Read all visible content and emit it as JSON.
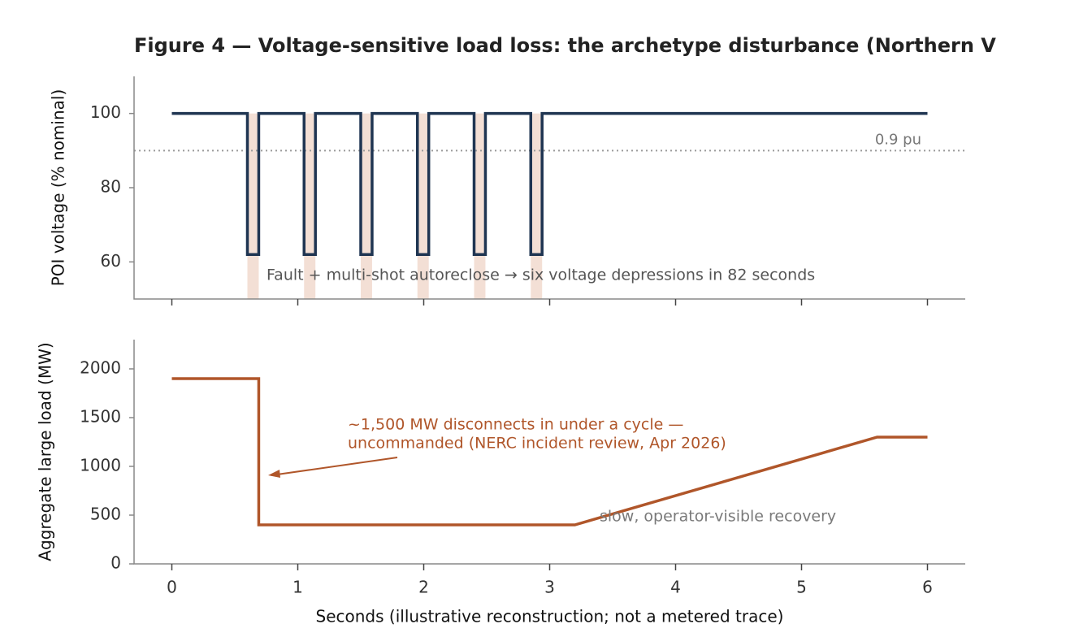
{
  "chart_data": [
    {
      "type": "line",
      "title": "Figure 4 — Voltage-sensitive load loss: the archetype disturbance (Northern V",
      "y_label": "POI voltage (% nominal)",
      "x": [
        0,
        0.6,
        0.6,
        0.69,
        0.69,
        1.05,
        1.05,
        1.14,
        1.14,
        1.5,
        1.5,
        1.59,
        1.59,
        1.95,
        1.95,
        2.04,
        2.04,
        2.4,
        2.4,
        2.49,
        2.49,
        2.85,
        2.85,
        2.94,
        2.94,
        6
      ],
      "series": [
        {
          "name": "POI voltage",
          "color": "#1f3552",
          "values": [
            100,
            100,
            62,
            62,
            100,
            100,
            62,
            62,
            100,
            100,
            62,
            62,
            100,
            100,
            62,
            62,
            100,
            100,
            62,
            62,
            100,
            100,
            62,
            62,
            100,
            100
          ]
        }
      ],
      "shaded_spans": [
        [
          0.6,
          0.69
        ],
        [
          1.05,
          1.14
        ],
        [
          1.5,
          1.59
        ],
        [
          1.95,
          2.04
        ],
        [
          2.4,
          2.49
        ],
        [
          2.85,
          2.94
        ]
      ],
      "span_color": "#f3dfd5",
      "reference_line": {
        "value": 90,
        "label": "0.9 pu",
        "color": "#9a9a9a"
      },
      "annotation": "Fault + multi-shot autoreclose → six voltage depressions in 82 seconds",
      "xlim": [
        -0.3,
        6.3
      ],
      "xticks": [
        0,
        1,
        2,
        3,
        4,
        5,
        6
      ],
      "ylim": [
        50,
        110
      ],
      "yticks": [
        60,
        80,
        100
      ]
    },
    {
      "type": "line",
      "x_label": "Seconds (illustrative reconstruction; not a metered trace)",
      "y_label": "Aggregate large load (MW)",
      "x": [
        0,
        0.69,
        0.69,
        3.2,
        5.6,
        6
      ],
      "series": [
        {
          "name": "Aggregate large load",
          "color": "#b0562a",
          "values": [
            1900,
            1900,
            400,
            400,
            1300,
            1300
          ]
        }
      ],
      "annotations": [
        {
          "lines": [
            "~1,500 MW disconnects in under a cycle —",
            "uncommanded (NERC incident review, Apr 2026)"
          ],
          "color": "#b0562a"
        },
        {
          "lines": [
            "slow, operator-visible recovery"
          ],
          "color": "#7a7a7a"
        }
      ],
      "xlim": [
        -0.3,
        6.3
      ],
      "xticks": [
        0,
        1,
        2,
        3,
        4,
        5,
        6
      ],
      "ylim": [
        0,
        2300
      ],
      "yticks": [
        0,
        500,
        1000,
        1500,
        2000
      ]
    }
  ]
}
